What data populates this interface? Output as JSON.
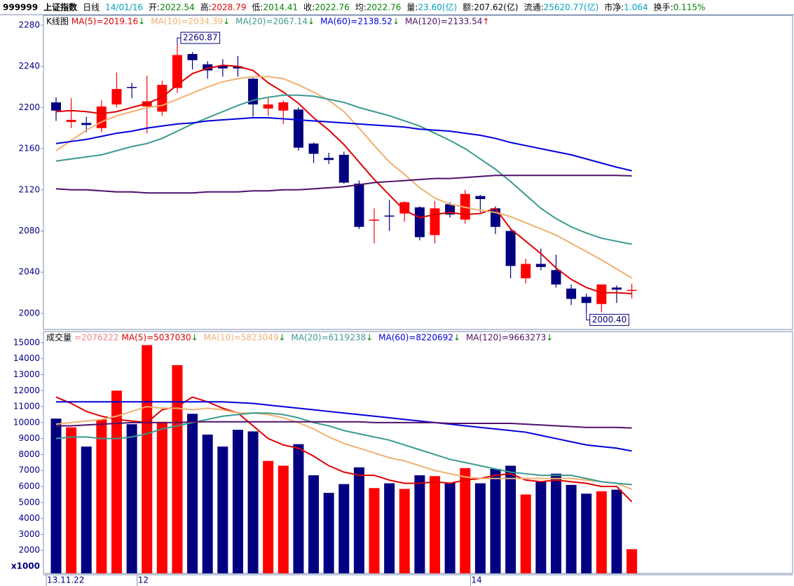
{
  "header": [
    {
      "text": "999999",
      "color": "#000000",
      "bold": true
    },
    {
      "text": "上证指数",
      "color": "#000000",
      "bold": true,
      "big": true
    },
    {
      "text": "日线",
      "color": "#000000"
    },
    {
      "text": "14/01/16",
      "color": "#00a0c0"
    },
    {
      "label": "开:",
      "text": "2022.54",
      "color": "#008000"
    },
    {
      "label": "高:",
      "text": "2028.79",
      "color": "#e00000"
    },
    {
      "label": "低:",
      "text": "2014.41",
      "color": "#008000"
    },
    {
      "label": "收:",
      "text": "2022.76",
      "color": "#008000"
    },
    {
      "label": "均:",
      "text": "2022.76",
      "color": "#008000"
    },
    {
      "label": "量:",
      "text": "23.60(亿)",
      "color": "#00a0c0"
    },
    {
      "label": "额:",
      "text": "207.62(亿)",
      "color": "#000000"
    },
    {
      "label": "流通:",
      "text": "25620.77(亿)",
      "color": "#00a0c0"
    },
    {
      "label": "市净:",
      "text": "1.064",
      "color": "#00a0c0"
    },
    {
      "label": "换手:",
      "text": "0.115%",
      "color": "#008000"
    }
  ],
  "chart_data": [
    {
      "type": "candlestick",
      "title": "K线图",
      "up_color": "#ff0000",
      "down_color": "#000080",
      "open": [
        2205,
        2186,
        2185,
        2180,
        2203,
        2220,
        2201,
        2196,
        2219,
        2252,
        2242,
        2241,
        2240,
        2228,
        2199,
        2197,
        2198,
        2165,
        2151,
        2154,
        2126,
        2090,
        2095,
        2097,
        2103,
        2076,
        2106,
        2091,
        2114,
        2102,
        2080,
        2034,
        2048,
        2042,
        2024,
        2016,
        2009,
        2025,
        2022.54
      ],
      "high": [
        2210,
        2209,
        2191,
        2207,
        2234,
        2224,
        2231,
        2226,
        2260.87,
        2254,
        2245,
        2247,
        2250,
        2229,
        2209,
        2207,
        2200,
        2166,
        2156,
        2157,
        2129,
        2102,
        2110,
        2109,
        2104,
        2109,
        2108,
        2120,
        2115,
        2104,
        2081,
        2053,
        2063,
        2057,
        2028,
        2019,
        2028,
        2027,
        2028.79
      ],
      "low": [
        2187,
        2180,
        2176,
        2176,
        2200,
        2209,
        2175,
        2192,
        2214,
        2237,
        2228,
        2230,
        2230,
        2191,
        2192,
        2184,
        2158,
        2146,
        2145,
        2126,
        2082,
        2068,
        2080,
        2089,
        2071,
        2068,
        2093,
        2087,
        2098,
        2077,
        2034,
        2029,
        2042,
        2025,
        2008,
        2000.4,
        2001,
        2010,
        2014.41
      ],
      "close": [
        2197,
        2188,
        2183,
        2201,
        2218,
        2219,
        2206,
        2222,
        2251,
        2246,
        2236,
        2238,
        2238,
        2203,
        2203,
        2205,
        2161,
        2155,
        2149,
        2127,
        2084,
        2091,
        2094,
        2108,
        2074,
        2102,
        2096,
        2116,
        2111,
        2084,
        2046,
        2048,
        2045,
        2028,
        2014,
        2010,
        2028,
        2023,
        2022.76
      ],
      "annotations": [
        "2260.87",
        "2000.40"
      ],
      "ylim": [
        1984.3,
        2289.5
      ],
      "yticks": [
        2000,
        2040,
        2080,
        2120,
        2160,
        2200,
        2240,
        2280
      ],
      "series": [
        {
          "name": "MA(5)=2019.16",
          "trend": "↓",
          "color": "#e00000",
          "values": [
            2196,
            2197,
            2196,
            2194,
            2196,
            2200,
            2204,
            2210,
            2222,
            2233,
            2238,
            2241,
            2240,
            2236,
            2224,
            2215,
            2204,
            2190,
            2178,
            2164,
            2147,
            2130,
            2115,
            2100,
            2093,
            2096,
            2098,
            2096,
            2097,
            2102,
            2082,
            2070,
            2058,
            2044,
            2033,
            2025,
            2020,
            2020,
            2019.16
          ]
        },
        {
          "name": "MA(10)=2034.39",
          "trend": "↓",
          "color": "#f0b070",
          "values": [
            2158,
            2168,
            2178,
            2186,
            2192,
            2196,
            2200,
            2202,
            2208,
            2214,
            2220,
            2225,
            2228,
            2230,
            2230,
            2228,
            2222,
            2215,
            2207,
            2196,
            2180,
            2163,
            2147,
            2135,
            2122,
            2112,
            2106,
            2103,
            2100,
            2098,
            2094,
            2088,
            2082,
            2076,
            2068,
            2060,
            2052,
            2043,
            2034.39
          ]
        },
        {
          "name": "MA(20)=2067.14",
          "trend": "↓",
          "color": "#3a9a90",
          "values": [
            2148,
            2150,
            2152,
            2154,
            2158,
            2162,
            2165,
            2170,
            2177,
            2184,
            2190,
            2196,
            2202,
            2207,
            2210,
            2212,
            2212,
            2211,
            2208,
            2205,
            2200,
            2196,
            2192,
            2187,
            2182,
            2175,
            2168,
            2160,
            2150,
            2140,
            2128,
            2115,
            2102,
            2092,
            2084,
            2078,
            2073,
            2070,
            2067.14
          ]
        },
        {
          "name": "MA(60)=2138.52",
          "trend": "↓",
          "color": "#0000dd",
          "values": [
            2165,
            2167,
            2169,
            2172,
            2175,
            2177,
            2180,
            2182,
            2184,
            2185,
            2187,
            2188,
            2189,
            2190,
            2190,
            2189,
            2188,
            2187,
            2186,
            2185,
            2184,
            2183,
            2182,
            2181,
            2179,
            2178,
            2177,
            2175,
            2173,
            2170,
            2166,
            2163,
            2160,
            2157,
            2154,
            2150,
            2146,
            2142,
            2138.52
          ]
        },
        {
          "name": "MA(120)=2133.54",
          "trend": "↑",
          "color": "#50106a",
          "values": [
            2121,
            2120,
            2120,
            2119,
            2118,
            2118,
            2117,
            2117,
            2117,
            2117,
            2118,
            2118,
            2118,
            2119,
            2119,
            2120,
            2120,
            2121,
            2122,
            2123,
            2125,
            2127,
            2128,
            2129,
            2130,
            2131,
            2131,
            2132,
            2133,
            2134,
            2134,
            2134,
            2134,
            2134,
            2134,
            2134,
            2134,
            2134,
            2133.54
          ]
        }
      ]
    },
    {
      "type": "bar",
      "title": "成交量",
      "current": "=2076222",
      "current_color": "#f08080",
      "unit_label": "x1000",
      "up_color": "#ff0000",
      "down_color": "#000080",
      "categories": [
        "13.11.22",
        null,
        null,
        null,
        null,
        null,
        "12",
        null,
        null,
        null,
        null,
        null,
        null,
        null,
        null,
        null,
        null,
        null,
        null,
        null,
        null,
        null,
        null,
        null,
        null,
        null,
        null,
        null,
        "14",
        null,
        null,
        null,
        null,
        null,
        null,
        null,
        null,
        null,
        null
      ],
      "values": [
        10250,
        9700,
        8500,
        10200,
        12000,
        9900,
        14850,
        10050,
        13600,
        10550,
        9250,
        8500,
        9550,
        9450,
        7600,
        7300,
        8650,
        6700,
        5600,
        6150,
        7200,
        5900,
        6200,
        5850,
        6700,
        6650,
        6250,
        7150,
        6200,
        7100,
        7300,
        5500,
        6300,
        6800,
        6100,
        5550,
        5700,
        5800,
        2076
      ],
      "ylim": [
        560,
        15700
      ],
      "yticks": [
        2000,
        3000,
        4000,
        5000,
        6000,
        7000,
        8000,
        9000,
        10000,
        11000,
        12000,
        13000,
        14000,
        15000
      ],
      "series": [
        {
          "name": "MA(5)=5037030",
          "trend": "↓",
          "color": "#e00000",
          "values": [
            11600,
            11200,
            10700,
            10400,
            10200,
            10100,
            10000,
            10800,
            11000,
            11600,
            11300,
            10900,
            10600,
            9800,
            9000,
            8600,
            8400,
            7900,
            7300,
            6900,
            6700,
            6700,
            6400,
            6200,
            6200,
            6300,
            6200,
            6400,
            6500,
            6700,
            6800,
            6400,
            6300,
            6400,
            6300,
            6200,
            6000,
            6000,
            5037
          ]
        },
        {
          "name": "MA(10)=5823049",
          "trend": "↓",
          "color": "#f0b070",
          "values": [
            9900,
            10000,
            10100,
            10200,
            10400,
            10700,
            11000,
            10900,
            10900,
            10800,
            10900,
            10800,
            10600,
            10600,
            10500,
            10300,
            10000,
            9600,
            9100,
            8700,
            8400,
            8100,
            7800,
            7600,
            7300,
            7000,
            6800,
            6600,
            6500,
            6500,
            6500,
            6500,
            6500,
            6500,
            6500,
            6400,
            6300,
            6200,
            5823
          ]
        },
        {
          "name": "MA(20)=6119238",
          "trend": "↓",
          "color": "#3a9a90",
          "values": [
            9000,
            9100,
            9100,
            9000,
            9000,
            9100,
            9300,
            9600,
            9800,
            10000,
            10200,
            10400,
            10500,
            10600,
            10600,
            10500,
            10300,
            10000,
            9800,
            9500,
            9300,
            9100,
            8900,
            8600,
            8300,
            8000,
            7700,
            7500,
            7300,
            7100,
            6900,
            6800,
            6700,
            6700,
            6700,
            6500,
            6300,
            6200,
            6119
          ]
        },
        {
          "name": "MA(60)=8220692",
          "trend": "↓",
          "color": "#0000dd",
          "values": [
            11300,
            11300,
            11300,
            11300,
            11300,
            11300,
            11300,
            11300,
            11300,
            11300,
            11300,
            11300,
            11250,
            11200,
            11100,
            11000,
            10900,
            10800,
            10700,
            10600,
            10500,
            10400,
            10300,
            10200,
            10100,
            10000,
            9900,
            9800,
            9700,
            9600,
            9500,
            9400,
            9200,
            9000,
            8800,
            8600,
            8500,
            8400,
            8221
          ]
        },
        {
          "name": "MA(120)=9663273",
          "trend": "↓",
          "color": "#50106a",
          "values": [
            9800,
            9800,
            9850,
            9900,
            9950,
            10000,
            10000,
            10000,
            10000,
            10050,
            10050,
            10050,
            10050,
            10050,
            10050,
            10050,
            10050,
            10050,
            10050,
            10050,
            10050,
            10000,
            10000,
            10000,
            10000,
            10000,
            9950,
            9950,
            9950,
            9950,
            9950,
            9900,
            9850,
            9800,
            9750,
            9700,
            9700,
            9700,
            9663
          ]
        }
      ]
    }
  ]
}
